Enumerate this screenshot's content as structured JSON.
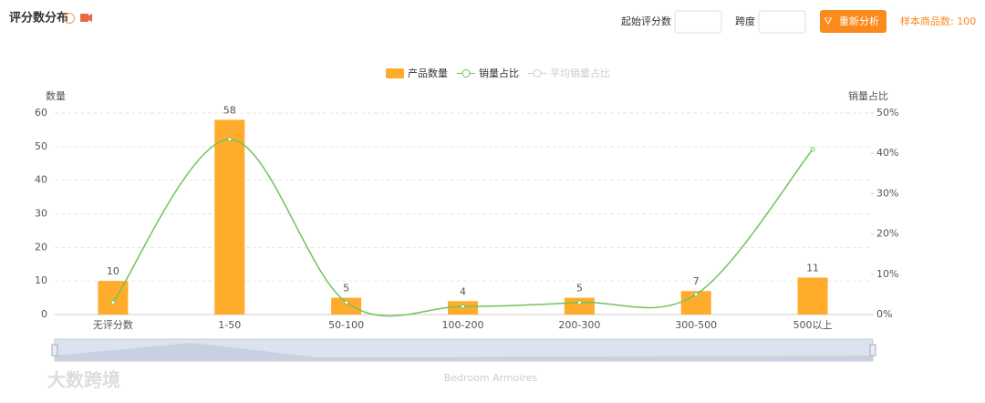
{
  "header": {
    "title": "评分数分布",
    "start_label": "起始评分数",
    "span_label": "跨度",
    "button": "重新分析",
    "sample": "样本商品数: 100"
  },
  "chart_data": {
    "type": "bar_line",
    "categories": [
      "无评分数",
      "1-50",
      "50-100",
      "100-200",
      "200-300",
      "300-500",
      "500以上"
    ],
    "series": [
      {
        "name": "产品数量",
        "color": "#ffab2b",
        "type": "bar",
        "values": [
          10,
          58,
          5,
          4,
          5,
          7,
          11
        ]
      },
      {
        "name": "销量占比",
        "color": "#72c35a",
        "type": "line",
        "axis": "y2",
        "values": [
          3,
          43.5,
          3,
          2,
          3,
          5,
          41
        ]
      },
      {
        "name": "平均销量占比",
        "color": "#cccccc",
        "type": "line",
        "axis": "y2",
        "visible": false
      }
    ],
    "ylabel": "数量",
    "y2label": "销量占比",
    "ylim": [
      0,
      60
    ],
    "yticks": [
      0,
      10,
      20,
      30,
      40,
      50,
      60
    ],
    "y2lim": [
      0,
      50
    ],
    "y2ticks": [
      {
        "value": 0,
        "label": "0%"
      },
      {
        "value": 10,
        "label": "10%"
      },
      {
        "value": 20,
        "label": "20%"
      },
      {
        "value": 30,
        "label": "30%"
      },
      {
        "value": 40,
        "label": "40%"
      },
      {
        "value": 50,
        "label": "50%"
      }
    ],
    "grid": true,
    "legend": "top",
    "zoom_label": "Bedroom Armoires"
  },
  "watermark": "大数跨境"
}
